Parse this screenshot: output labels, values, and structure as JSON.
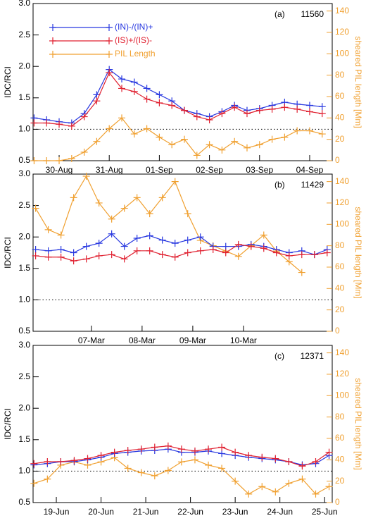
{
  "chart_data": [
    {
      "type": "line",
      "annotation": "(a)",
      "title": "11560",
      "legend": "upper left",
      "hline": 1,
      "ylabel": "IDC/RCI",
      "y2label": "sheared PIL length [Mm]",
      "xlim": [
        -0.52,
        5.45
      ],
      "xticks": [
        {
          "value": 0,
          "label": "30-Aug"
        },
        {
          "value": 1,
          "label": "31-Aug"
        },
        {
          "value": 2,
          "label": "01-Sep"
        },
        {
          "value": 3,
          "label": "02-Sep"
        },
        {
          "value": 4,
          "label": "03-Sep"
        },
        {
          "value": 5,
          "label": "04-Sep"
        }
      ],
      "ylim": [
        0.5,
        3.0
      ],
      "yticks": [
        {
          "value": 0.5,
          "label": "0.5"
        },
        {
          "value": 1.0,
          "label": "1.0"
        },
        {
          "value": 1.5,
          "label": "1.5"
        },
        {
          "value": 2.0,
          "label": "2.0"
        },
        {
          "value": 2.5,
          "label": "2.5"
        },
        {
          "value": 3.0,
          "label": "3.0"
        }
      ],
      "y2lim": [
        0,
        147
      ],
      "y2ticks": [
        0,
        20,
        40,
        60,
        80,
        100,
        120,
        140
      ],
      "x": [
        -0.5,
        -0.25,
        0,
        0.25,
        0.5,
        0.75,
        1,
        1.25,
        1.5,
        1.75,
        2,
        2.25,
        2.5,
        2.75,
        3,
        3.25,
        3.5,
        3.75,
        4,
        4.25,
        4.5,
        4.75,
        5,
        5.25
      ],
      "series": [
        {
          "name": "(IN)-/(IN)+",
          "color": "#2838e0",
          "values": [
            1.18,
            1.15,
            1.12,
            1.1,
            1.25,
            1.55,
            1.95,
            1.8,
            1.75,
            1.65,
            1.55,
            1.45,
            1.3,
            1.25,
            1.2,
            1.28,
            1.38,
            1.3,
            1.33,
            1.38,
            1.43,
            1.4,
            1.38,
            1.36
          ]
        },
        {
          "name": "(IS)+/(IS)-",
          "color": "#e02030",
          "values": [
            1.1,
            1.1,
            1.08,
            1.05,
            1.2,
            1.45,
            1.9,
            1.65,
            1.6,
            1.48,
            1.42,
            1.38,
            1.3,
            1.2,
            1.15,
            1.25,
            1.35,
            1.25,
            1.3,
            1.32,
            1.35,
            1.32,
            1.28,
            1.25
          ]
        },
        {
          "name": "PIL Length",
          "color": "#f0a030",
          "axis": "y2",
          "values": [
            0,
            0,
            0,
            2,
            8,
            18,
            30,
            40,
            25,
            30,
            22,
            15,
            20,
            5,
            15,
            10,
            18,
            12,
            15,
            20,
            22,
            28,
            28,
            25
          ]
        }
      ]
    },
    {
      "type": "line",
      "annotation": "(b)",
      "title": "11429",
      "hline": 1,
      "ylabel": "IDC/RCI",
      "y2label": "sheared PIL length [Mm]",
      "xlim": [
        -1.15,
        4.75
      ],
      "xticks": [
        {
          "value": 0,
          "label": "07-Mar"
        },
        {
          "value": 1,
          "label": "08-Mar"
        },
        {
          "value": 2,
          "label": "09-Mar"
        },
        {
          "value": 3,
          "label": "10-Mar"
        }
      ],
      "ylim": [
        0.5,
        3.0
      ],
      "yticks": [
        {
          "value": 0.5,
          "label": "0.5"
        },
        {
          "value": 1.0,
          "label": "1.0"
        },
        {
          "value": 1.5,
          "label": "1.5"
        },
        {
          "value": 2.0,
          "label": "2.0"
        },
        {
          "value": 2.5,
          "label": "2.5"
        },
        {
          "value": 3.0,
          "label": "3.0"
        }
      ],
      "y2lim": [
        0,
        147
      ],
      "y2ticks": [
        0,
        20,
        40,
        60,
        80,
        100,
        120,
        140
      ],
      "x": [
        -1.1,
        -0.85,
        -0.6,
        -0.35,
        -0.1,
        0.15,
        0.4,
        0.65,
        0.9,
        1.15,
        1.4,
        1.65,
        1.9,
        2.15,
        2.4,
        2.65,
        2.9,
        3.15,
        3.4,
        3.65,
        3.9,
        4.15,
        4.4,
        4.65
      ],
      "series": [
        {
          "color": "#2838e0",
          "values": [
            1.8,
            1.78,
            1.8,
            1.75,
            1.85,
            1.9,
            2.05,
            1.85,
            1.98,
            2.02,
            1.95,
            1.9,
            1.95,
            2.0,
            1.85,
            1.85,
            1.85,
            1.88,
            1.85,
            1.8,
            1.75,
            1.78,
            1.72,
            1.8
          ]
        },
        {
          "color": "#e02030",
          "values": [
            1.7,
            1.68,
            1.68,
            1.62,
            1.65,
            1.7,
            1.72,
            1.65,
            1.78,
            1.78,
            1.72,
            1.68,
            1.75,
            1.78,
            1.8,
            1.75,
            1.88,
            1.85,
            1.82,
            1.75,
            1.7,
            1.72,
            1.72,
            1.75
          ]
        },
        {
          "color": "#f0a030",
          "axis": "y2",
          "values": [
            115,
            95,
            90,
            125,
            145,
            120,
            105,
            115,
            125,
            110,
            125,
            140,
            110,
            85,
            80,
            75,
            70,
            80,
            90,
            75,
            65,
            55,
            null,
            null
          ]
        }
      ]
    },
    {
      "type": "line",
      "annotation": "(c)",
      "title": "12371",
      "hline": 1,
      "ylabel": "IDC/RCI",
      "y2label": "sheared PIL length [Mm]",
      "xlim": [
        -0.52,
        6.17
      ],
      "xticks": [
        {
          "value": 0,
          "label": "19-Jun"
        },
        {
          "value": 1,
          "label": "20-Jun"
        },
        {
          "value": 2,
          "label": "21-Jun"
        },
        {
          "value": 3,
          "label": "22-Jun"
        },
        {
          "value": 4,
          "label": "23-Jun"
        },
        {
          "value": 5,
          "label": "24-Jun"
        },
        {
          "value": 6,
          "label": "25-Jun"
        }
      ],
      "ylim": [
        0.5,
        3.0
      ],
      "yticks": [
        {
          "value": 0.5,
          "label": "0.5"
        },
        {
          "value": 1.0,
          "label": "1.0"
        },
        {
          "value": 1.5,
          "label": "1.5"
        },
        {
          "value": 2.0,
          "label": "2.0"
        },
        {
          "value": 2.5,
          "label": "2.5"
        },
        {
          "value": 3.0,
          "label": "3.0"
        }
      ],
      "y2lim": [
        0,
        147
      ],
      "y2ticks": [
        0,
        20,
        40,
        60,
        80,
        100,
        120,
        140
      ],
      "x": [
        -0.5,
        -0.2,
        0.1,
        0.4,
        0.7,
        1.0,
        1.3,
        1.6,
        1.9,
        2.2,
        2.5,
        2.8,
        3.1,
        3.4,
        3.7,
        4.0,
        4.3,
        4.6,
        4.9,
        5.2,
        5.5,
        5.8,
        6.1
      ],
      "series": [
        {
          "color": "#2838e0",
          "values": [
            1.1,
            1.12,
            1.15,
            1.15,
            1.18,
            1.22,
            1.28,
            1.3,
            1.32,
            1.33,
            1.35,
            1.3,
            1.3,
            1.32,
            1.28,
            1.25,
            1.22,
            1.2,
            1.18,
            1.15,
            1.1,
            1.12,
            1.25
          ]
        },
        {
          "color": "#e02030",
          "values": [
            1.12,
            1.15,
            1.15,
            1.17,
            1.2,
            1.25,
            1.3,
            1.33,
            1.35,
            1.38,
            1.4,
            1.35,
            1.32,
            1.35,
            1.38,
            1.3,
            1.25,
            1.22,
            1.2,
            1.15,
            1.08,
            1.15,
            1.3
          ]
        },
        {
          "color": "#f0a030",
          "axis": "y2",
          "values": [
            18,
            22,
            35,
            38,
            35,
            38,
            42,
            32,
            28,
            25,
            30,
            38,
            40,
            35,
            32,
            20,
            8,
            15,
            10,
            18,
            22,
            8,
            15
          ]
        }
      ]
    }
  ]
}
